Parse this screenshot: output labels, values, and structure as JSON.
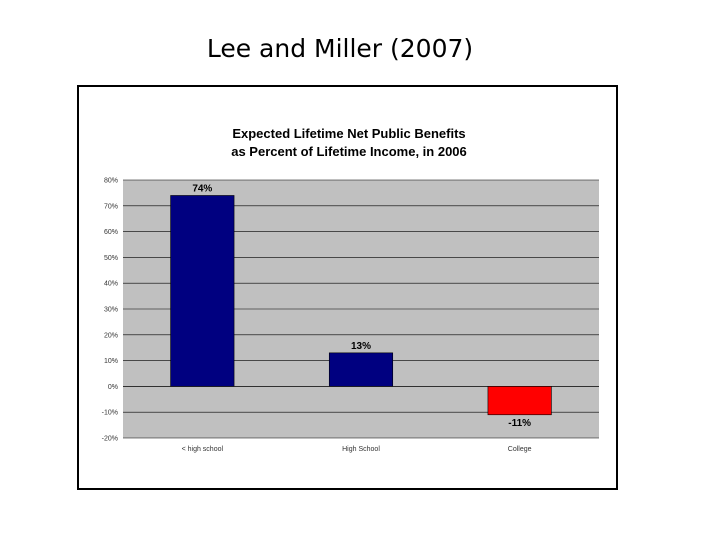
{
  "slide": {
    "title": "Lee and Miller (2007)"
  },
  "chart_data": {
    "type": "bar",
    "title": "Expected Lifetime Net Public Benefits",
    "subtitle": "as Percent of Lifetime Income, in 2006",
    "categories": [
      "< high school",
      "High School",
      "College"
    ],
    "values": [
      74,
      13,
      -11
    ],
    "data_labels": [
      "74%",
      "13%",
      "-11%"
    ],
    "colors": [
      "#000080",
      "#000080",
      "#ff0000"
    ],
    "ylim": [
      -20,
      80
    ],
    "yticks": [
      80,
      70,
      60,
      50,
      40,
      30,
      20,
      10,
      0,
      -10,
      -20
    ],
    "ytick_labels": [
      "80%",
      "70%",
      "60%",
      "50%",
      "40%",
      "30%",
      "20%",
      "10%",
      "0%",
      "-10%",
      "-20%"
    ],
    "grid": true,
    "plot_background": "#c0c0c0",
    "xlabel": "",
    "ylabel": ""
  }
}
